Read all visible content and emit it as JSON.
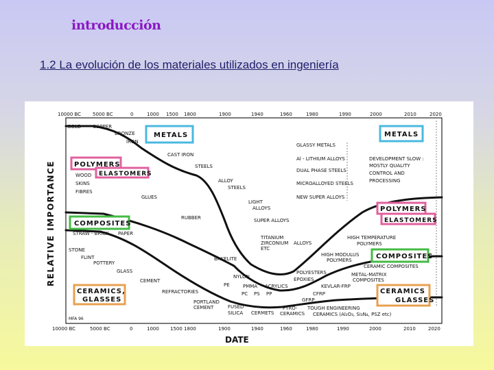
{
  "slide": {
    "title": "introducción",
    "subtitle": "1.2 La evolución de los materiales utilizados en ingeniería"
  },
  "colors": {
    "metals": "#4ab8e0",
    "polymers": "#e0609e",
    "composites": "#44bb44",
    "ceramics": "#e8a050",
    "title": "#8a18c4",
    "subtitle": "#20206a"
  },
  "diagram": {
    "top_axis_dates": [
      "10000 BC",
      "5000 BC",
      "0",
      "1000",
      "1500",
      "1800",
      "1900",
      "1940",
      "1960",
      "1980",
      "1990",
      "2000",
      "2010",
      "2020"
    ],
    "bottom_axis_dates": [
      "10000 BC",
      "5000 BC",
      "0",
      "1000",
      "1500 1800",
      "1900",
      "1940",
      "1960",
      "1980",
      "1990",
      "2000",
      "2010",
      "2020"
    ],
    "x_axis_title": "DATE",
    "y_axis_title": "RELATIVE IMPORTANCE",
    "credit": "MFA 96",
    "category_boxes": {
      "metals_left": "METALS",
      "polymers_left": "POLYMERS",
      "elastomers_left": "ELASTOMERS",
      "composites_left": "COMPOSITES",
      "ceramics_left": "CERAMICS,",
      "glasses_left": "GLASSES",
      "metals_right": "METALS",
      "polymers_right": "POLYMERS",
      "elastomers_right": "ELASTOMERS",
      "composites_right": "COMPOSITES",
      "ceramics_right": "CERAMICS",
      "glasses_right": "GLASSES"
    },
    "labels": {
      "gold": "GOLD",
      "copper": "COPPER",
      "bronze": "BRONZE",
      "iron": "IRON",
      "cast_iron": "CAST IRON",
      "steels": "STEELS",
      "alloy_steels": "ALLOY",
      "alloy_steels_2": "STEELS",
      "light_alloys": "LIGHT",
      "light_alloys_2": "ALLOYS",
      "super_alloys": "SUPER ALLOYS",
      "titanium": "TITANIUM",
      "zirconium": "ZIRCONIUM",
      "zirconium_alloys": "ALLOYS",
      "etc": "ETC",
      "wood": "WOOD",
      "skins": "SKINS",
      "fibres": "FIBRES",
      "glues": "GLUES",
      "rubber": "RUBBER",
      "bakelite": "BAKELITE",
      "nylon": "NYLON",
      "pe": "PE",
      "pmma": "PMMA",
      "acrylics": "ACRYLICS",
      "pc": "PC",
      "ps": "PS",
      "pp": "PP",
      "cfrp": "CFRP",
      "gfrp": "GFRP",
      "epoxies": "EPOXIES",
      "polyesters": "POLYESTERS",
      "kevlar": "KEVLAR-FRP",
      "straw_brick": "STRAW - BRICK",
      "paper": "PAPER",
      "stone": "STONE",
      "flint": "FLINT",
      "pottery": "POTTERY",
      "glass": "GLASS",
      "cement": "CEMENT",
      "refractories": "REFRACTORIES",
      "portland": "PORTLAND",
      "portland_2": "CEMENT",
      "fused": "FUSED",
      "silica": "SILICA",
      "cermets": "CERMETS",
      "pyro": "PYRO-",
      "pyro_2": "CERAMICS",
      "tough_eng": "TOUGH ENGINEERING",
      "tough_eng_2": "CERAMICS (Al₂O₃, Si₃N₄, PSZ etc)",
      "glassy_metals": "GLASSY METALS",
      "al_li": "Al - LITHIUM ALLOYS",
      "dual_phase": "DUAL PHASE STEELS",
      "microalloyed": "MICROALLOYED STEELS",
      "new_super": "NEW SUPER ALLOYS",
      "dev_slow": "DEVELOPMENT SLOW :",
      "quality": "MOSTLY QUALITY",
      "control": "CONTROL AND",
      "processing": "PROCESSING",
      "high_temp": "HIGH TEMPERATURE",
      "high_temp_2": "POLYMERS",
      "high_mod": "HIGH MODULUS",
      "high_mod_2": "POLYMERS",
      "ceramic_comp": "CERAMIC COMPOSITES",
      "mmc": "METAL-MATRIX",
      "mmc_2": "COMPOSITES"
    }
  }
}
